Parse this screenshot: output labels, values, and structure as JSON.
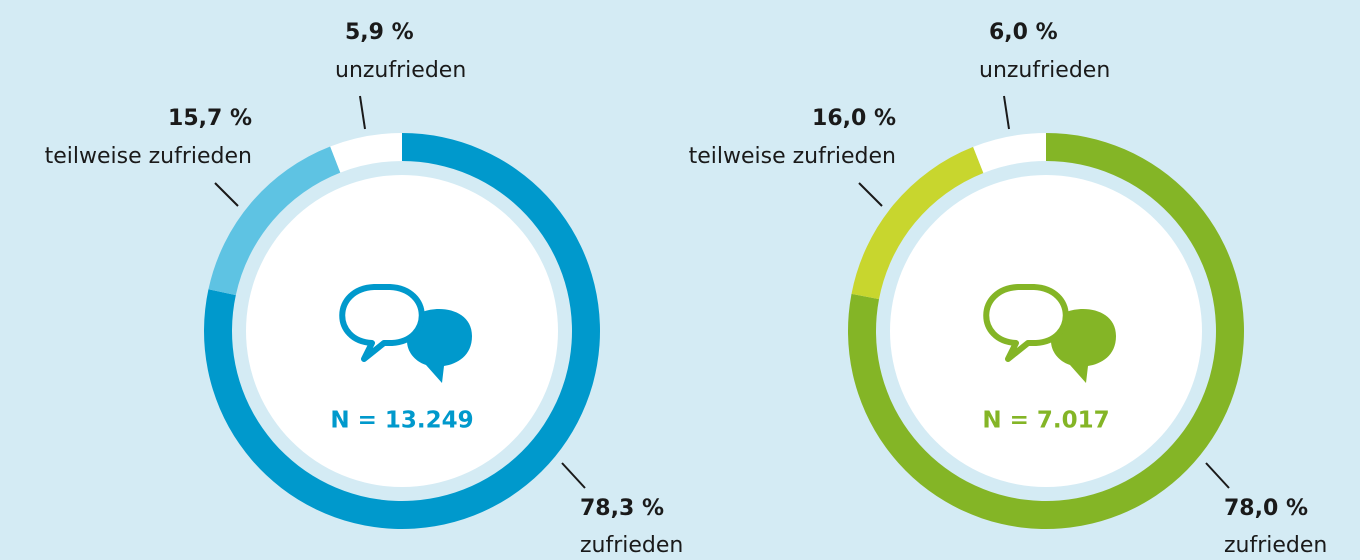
{
  "chart_data": [
    {
      "type": "donut",
      "categories": [
        "zufrieden",
        "teilweise zufrieden",
        "unzufrieden"
      ],
      "values": [
        78.3,
        15.7,
        5.9
      ],
      "value_labels": [
        "78,3 %",
        "15,7 %",
        "5,9 %"
      ],
      "colors": [
        "#0099cc",
        "#5ec3e3",
        "#ffffff"
      ],
      "annotation": "N = 13.249"
    },
    {
      "type": "donut",
      "categories": [
        "zufrieden",
        "teilweise zufrieden",
        "unzufrieden"
      ],
      "values": [
        78.0,
        16.0,
        6.0
      ],
      "value_labels": [
        "78,0 %",
        "16,0 %",
        "6,0 %"
      ],
      "colors": [
        "#84b526",
        "#c8d62e",
        "#ffffff"
      ],
      "annotation": "N = 7.017"
    }
  ]
}
